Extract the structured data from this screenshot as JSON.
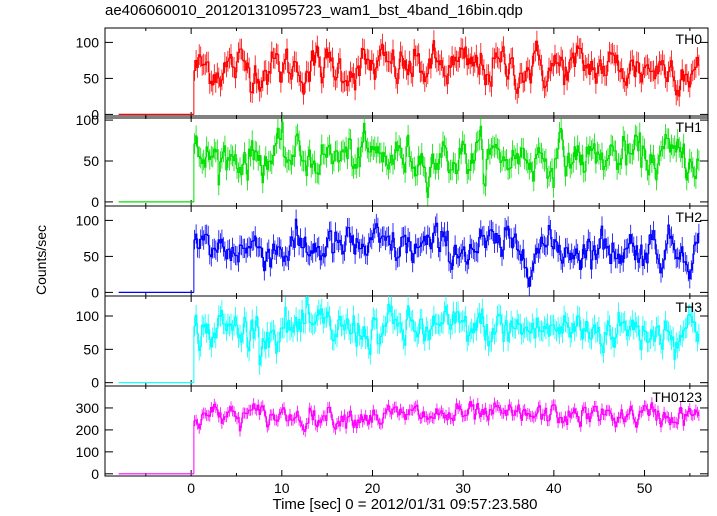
{
  "chart_data": {
    "type": "line",
    "title": "ae406060010_20120131095723_wam1_bst_4band_16bin.qdp",
    "xlabel": "Time [sec] 0 = 2012/01/31 09:57:23.580",
    "ylabel": "Counts/sec",
    "xlim": [
      -9.5,
      57
    ],
    "x_ticks": [
      0,
      10,
      20,
      30,
      40,
      50
    ],
    "grid": false,
    "panels": [
      {
        "name": "TH0",
        "color": "#ff0000",
        "ylim": [
          -5,
          120
        ],
        "y_ticks": [
          0,
          50,
          100
        ],
        "pre_level": 0,
        "mean": 65,
        "noise": 16,
        "x_start": 0.3,
        "x_end": 56,
        "step": 0.167
      },
      {
        "name": "TH1",
        "color": "#00e000",
        "ylim": [
          -5,
          105
        ],
        "y_ticks": [
          0,
          50,
          100
        ],
        "pre_level": 0,
        "mean": 55,
        "noise": 14,
        "x_start": 0.3,
        "x_end": 56,
        "step": 0.167
      },
      {
        "name": "TH2",
        "color": "#0000ff",
        "ylim": [
          -5,
          120
        ],
        "y_ticks": [
          0,
          50,
          100
        ],
        "pre_level": 0,
        "mean": 62,
        "noise": 15,
        "x_start": 0.3,
        "x_end": 56,
        "step": 0.167
      },
      {
        "name": "TH3",
        "color": "#00ffff",
        "ylim": [
          -5,
          130
        ],
        "y_ticks": [
          0,
          50,
          100
        ],
        "pre_level": 0,
        "mean": 80,
        "noise": 17,
        "x_start": 0.3,
        "x_end": 56,
        "step": 0.167
      },
      {
        "name": "TH0123",
        "color": "#ff00ff",
        "ylim": [
          -10,
          400
        ],
        "y_ticks": [
          0,
          100,
          200,
          300
        ],
        "pre_level": 0,
        "mean": 265,
        "noise": 28,
        "x_start": 0.3,
        "x_end": 56,
        "step": 0.167
      }
    ]
  }
}
